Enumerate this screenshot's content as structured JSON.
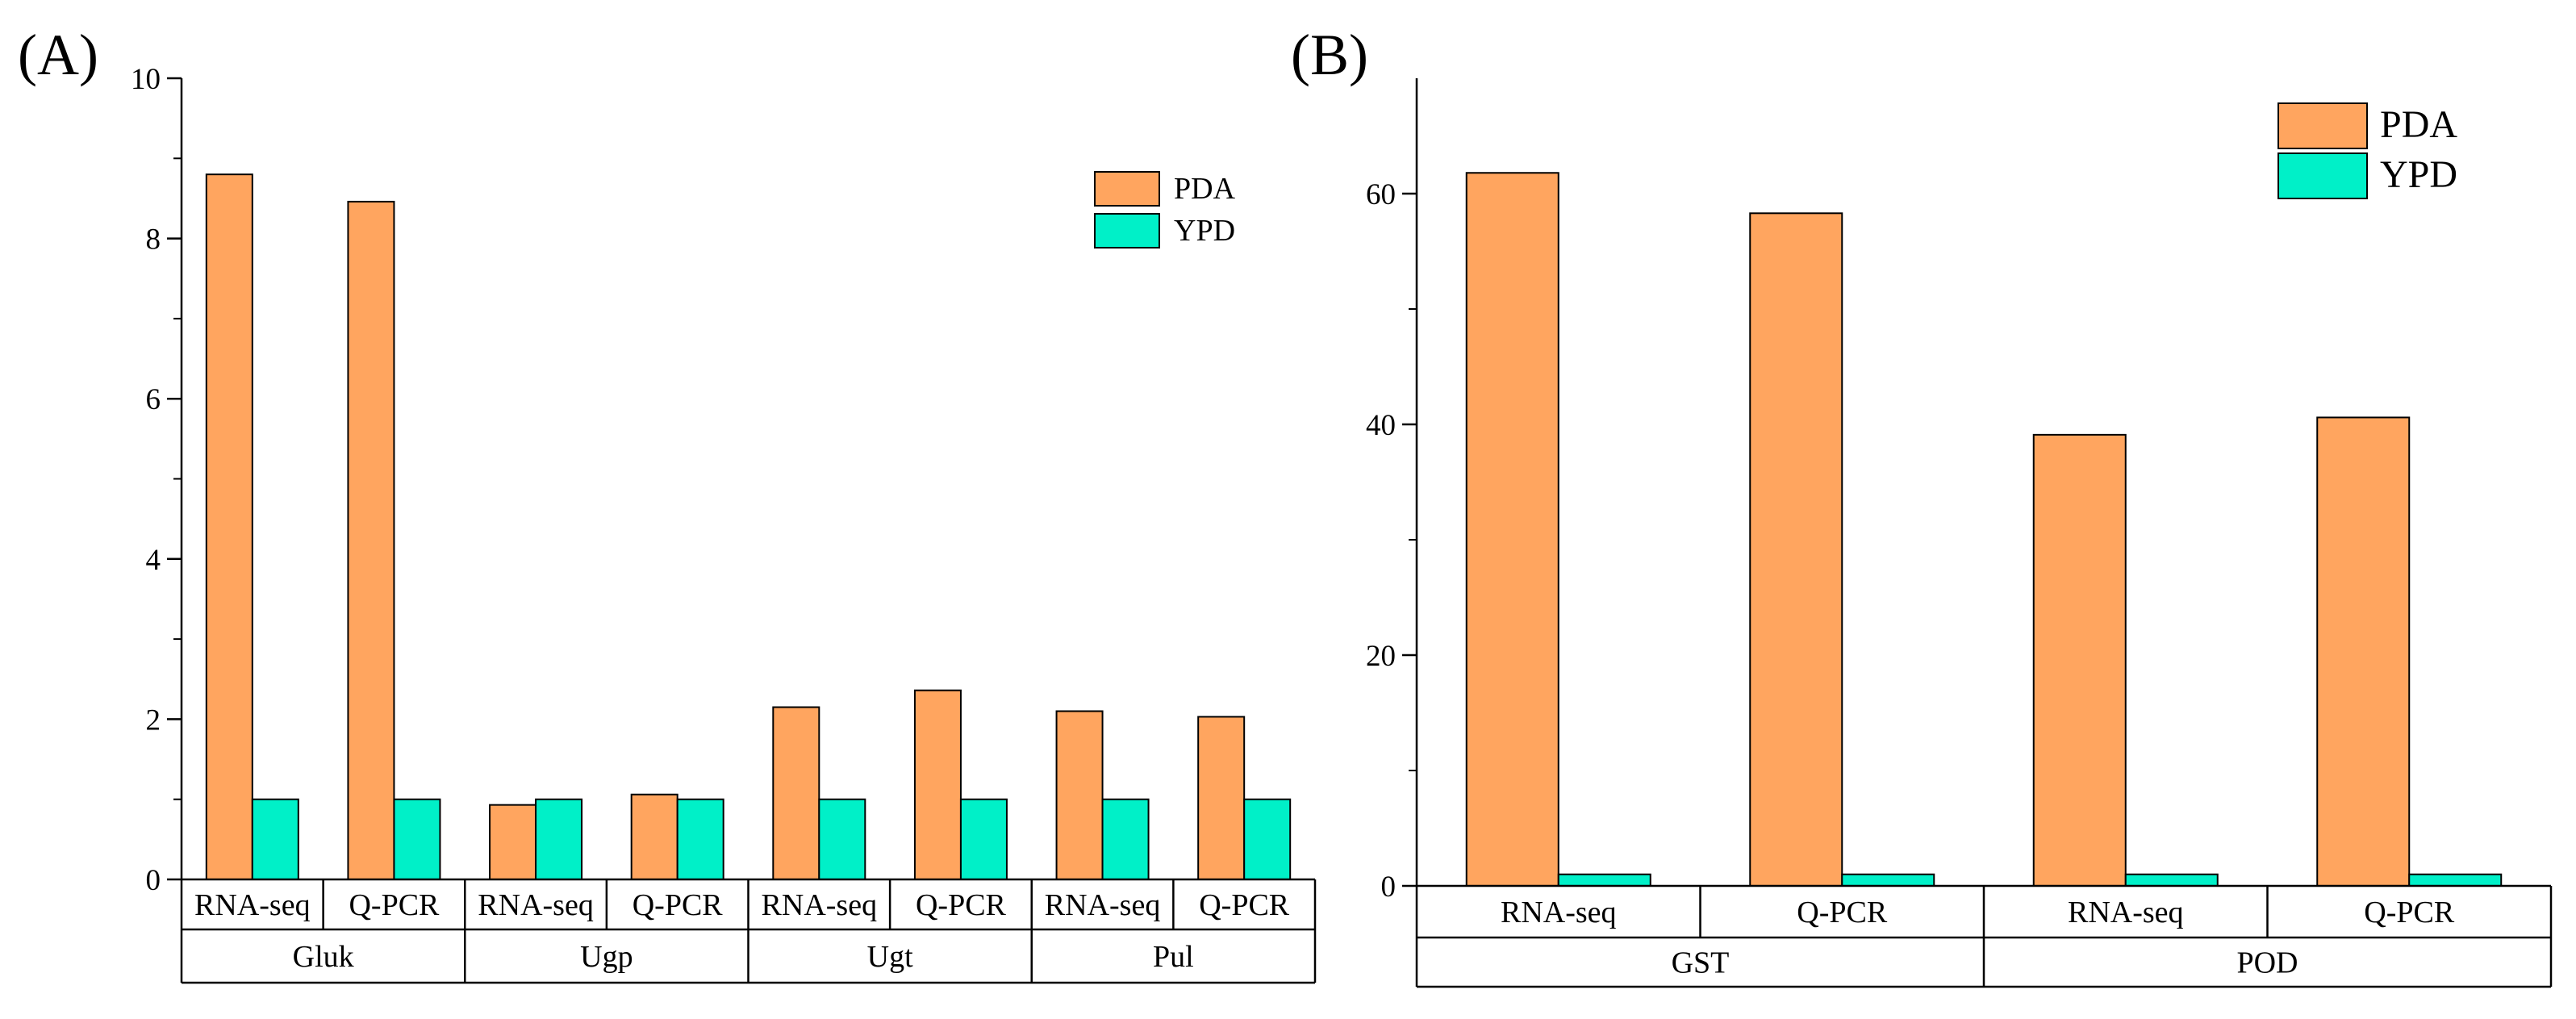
{
  "figure": {
    "colors": {
      "PDA": "#FFA55F",
      "YPD": "#00F0C8",
      "axis": "#000000"
    }
  },
  "chart_data": [
    {
      "type": "bar",
      "panel_label": "(A)",
      "title": "",
      "xlabel": "",
      "ylabel": "",
      "ylim": [
        0,
        10
      ],
      "yticks": [
        "0",
        "2",
        "4",
        "6",
        "8",
        "10"
      ],
      "legend": [
        "PDA",
        "YPD"
      ],
      "legend_position": "top-right",
      "groups": [
        "Gluk",
        "Ugp",
        "Ugt",
        "Pul"
      ],
      "categories": [
        "RNA-seq",
        "Q-PCR",
        "RNA-seq",
        "Q-PCR",
        "RNA-seq",
        "Q-PCR",
        "RNA-seq",
        "Q-PCR"
      ],
      "series": [
        {
          "name": "PDA",
          "values": [
            8.8,
            8.46,
            0.93,
            1.06,
            2.15,
            2.36,
            2.1,
            2.03
          ]
        },
        {
          "name": "YPD",
          "values": [
            1,
            1,
            1,
            1,
            1,
            1,
            1,
            1
          ]
        }
      ]
    },
    {
      "type": "bar",
      "panel_label": "(B)",
      "title": "",
      "xlabel": "",
      "ylabel": "",
      "ylim": [
        0,
        70
      ],
      "yticks": [
        "0",
        "20",
        "40",
        "60"
      ],
      "legend": [
        "PDA",
        "YPD"
      ],
      "legend_position": "top-right",
      "groups": [
        "GST",
        "POD"
      ],
      "categories": [
        "RNA-seq",
        "Q-PCR",
        "RNA-seq",
        "Q-PCR"
      ],
      "series": [
        {
          "name": "PDA",
          "values": [
            61.8,
            58.3,
            39.1,
            40.6
          ]
        },
        {
          "name": "YPD",
          "values": [
            1,
            1,
            1,
            1
          ]
        }
      ]
    }
  ]
}
